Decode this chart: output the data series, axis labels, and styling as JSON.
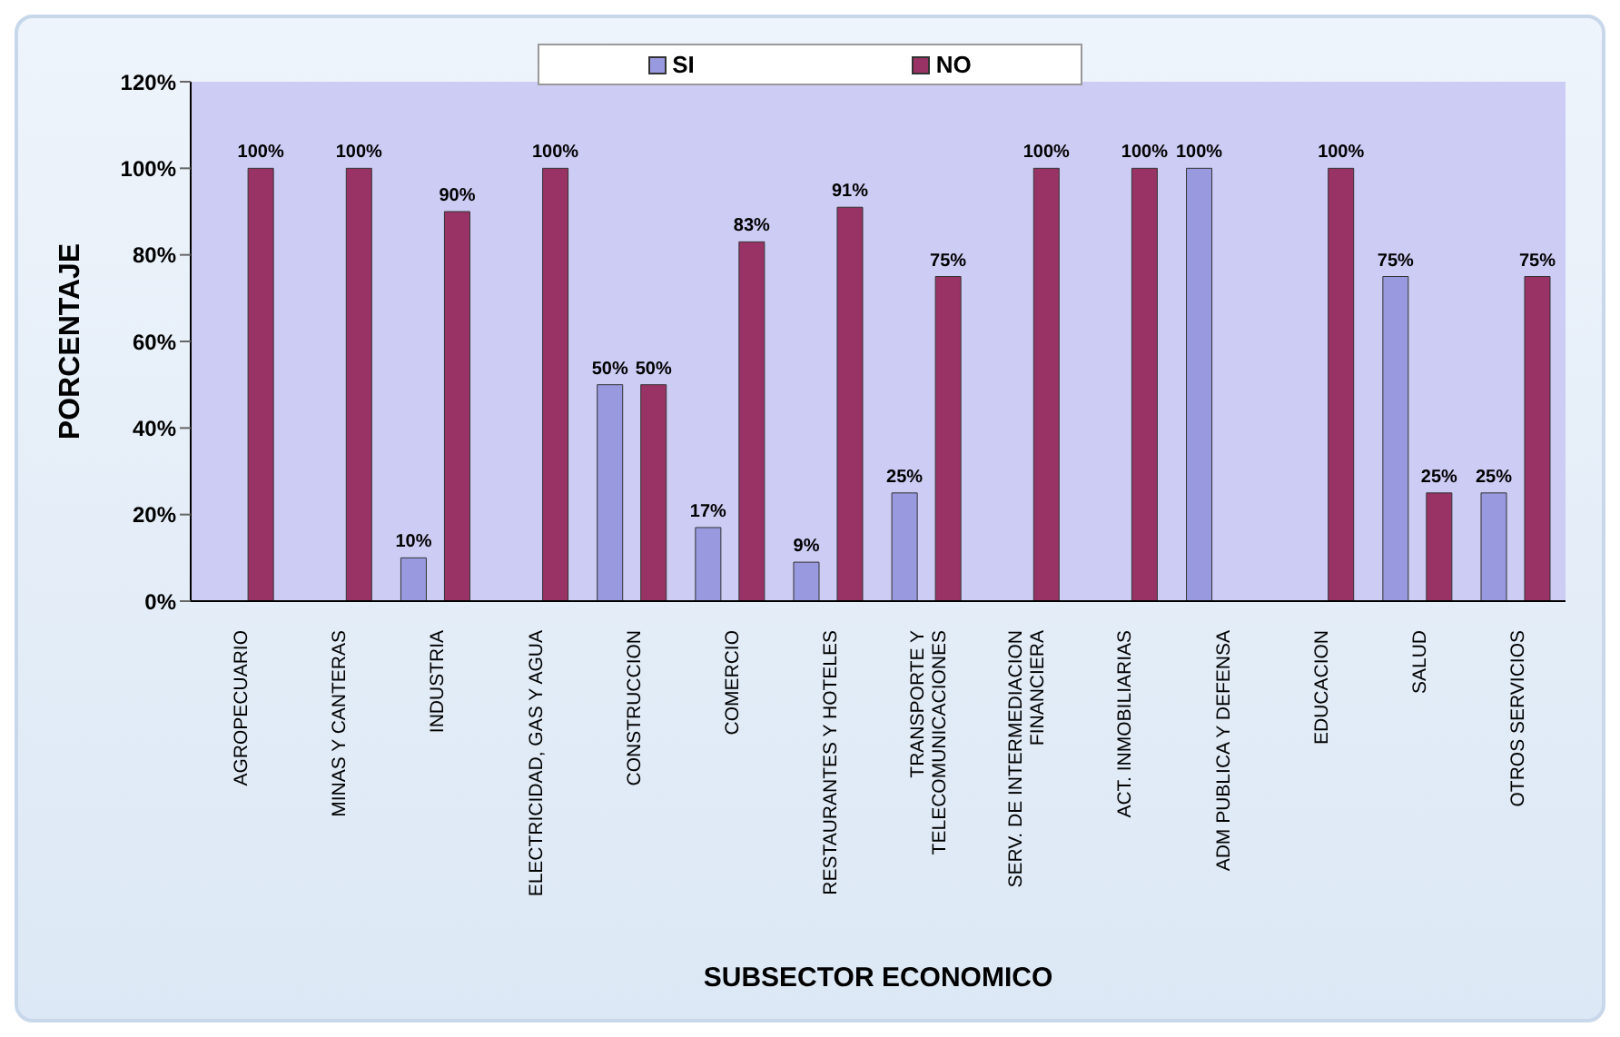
{
  "chart_data": {
    "type": "bar",
    "xlabel": "SUBSECTOR ECONOMICO",
    "ylabel": "PORCENTAJE",
    "categories": [
      "AGROPECUARIO",
      "MINAS Y CANTERAS",
      "INDUSTRIA",
      "ELECTRICIDAD, GAS Y AGUA",
      "CONSTRUCCION",
      "COMERCIO",
      "RESTAURANTES Y HOTELES",
      "TRANSPORTE Y TELECOMUNICACIONES",
      "SERV. DE INTERMEDIACION FINANCIERA",
      "ACT. INMOBILIARIAS",
      "ADM PUBLICA Y DEFENSA",
      "EDUCACION",
      "SALUD",
      "OTROS SERVICIOS"
    ],
    "series": [
      {
        "name": "SI",
        "color": "#9999e0",
        "values": [
          null,
          null,
          10,
          null,
          50,
          17,
          9,
          25,
          null,
          null,
          100,
          null,
          75,
          25
        ],
        "value_labels": [
          null,
          null,
          "10%",
          null,
          "50%",
          "17%",
          "9%",
          "25%",
          null,
          null,
          "100%",
          null,
          "75%",
          "25%"
        ]
      },
      {
        "name": "NO",
        "color": "#993366",
        "values": [
          100,
          100,
          90,
          100,
          50,
          83,
          91,
          75,
          100,
          100,
          null,
          100,
          25,
          75
        ],
        "value_labels": [
          "100%",
          "100%",
          "90%",
          "100%",
          "50%",
          "83%",
          "91%",
          "75%",
          "100%",
          "100%",
          null,
          "100%",
          "25%",
          "75%"
        ]
      }
    ],
    "ylim": [
      0,
      120
    ],
    "yticks": [
      {
        "value": 0,
        "label": "0%"
      },
      {
        "value": 20,
        "label": "20%"
      },
      {
        "value": 40,
        "label": "40%"
      },
      {
        "value": 60,
        "label": "60%"
      },
      {
        "value": 80,
        "label": "80%"
      },
      {
        "value": 100,
        "label": "100%"
      },
      {
        "value": 120,
        "label": "120%"
      }
    ],
    "legend": "top"
  }
}
